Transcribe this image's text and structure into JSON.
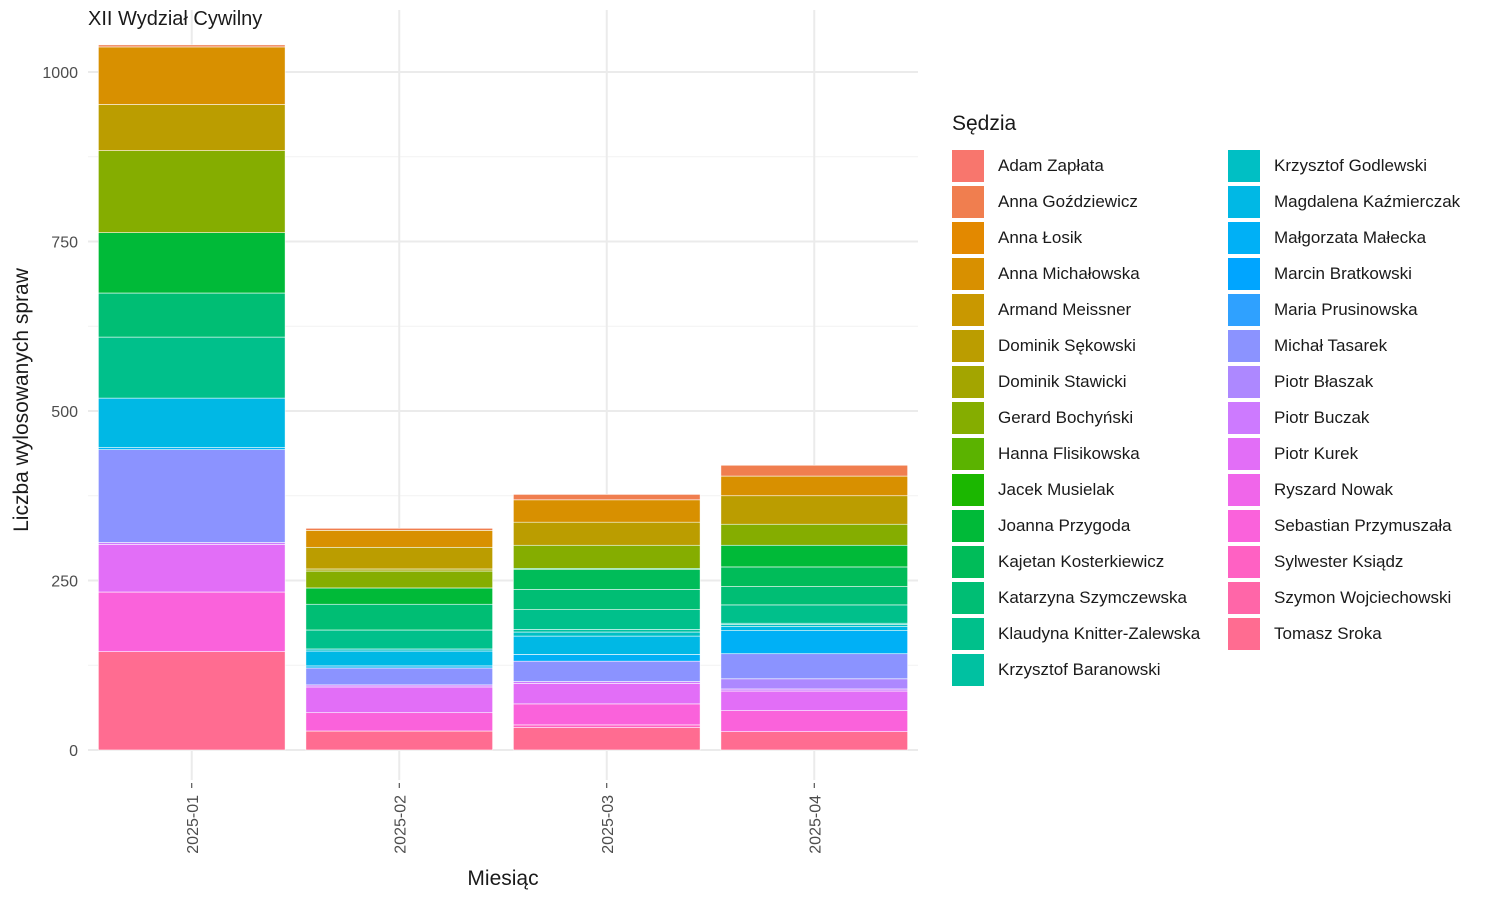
{
  "chart_data": {
    "type": "bar",
    "stacked": true,
    "title": "XII Wydział Cywilny",
    "xlabel": "Miesiąc",
    "ylabel": "Liczba wylosowanych spraw",
    "categories": [
      "2025-01",
      "2025-02",
      "2025-03",
      "2025-04"
    ],
    "ylim": [
      0,
      1040
    ],
    "yticks": [
      0,
      250,
      500,
      750,
      1000
    ],
    "grid": true,
    "legend_title": "Sędzia",
    "legend_position": "right",
    "series": [
      {
        "name": "Adam Zapłata",
        "color": "#F8766D",
        "values": [
          0,
          0,
          0,
          0
        ]
      },
      {
        "name": "Anna Goździewicz",
        "color": "#F07E4F",
        "values": [
          3,
          3,
          8,
          16
        ]
      },
      {
        "name": "Anna Łosik",
        "color": "#E38900",
        "values": [
          0,
          0,
          0,
          0
        ]
      },
      {
        "name": "Anna Michałowska",
        "color": "#D89000",
        "values": [
          85,
          25,
          33,
          29
        ]
      },
      {
        "name": "Armand Meissner",
        "color": "#C99800",
        "values": [
          0,
          0,
          0,
          0
        ]
      },
      {
        "name": "Dominik Sękowski",
        "color": "#BB9D00",
        "values": [
          68,
          32,
          34,
          42
        ]
      },
      {
        "name": "Dominik Stawicki",
        "color": "#A3A500",
        "values": [
          0,
          3,
          0,
          0
        ]
      },
      {
        "name": "Gerard Bochyński",
        "color": "#85AD00",
        "values": [
          121,
          25,
          34,
          31
        ]
      },
      {
        "name": "Hanna Flisikowska",
        "color": "#5BB300",
        "values": [
          0,
          0,
          0,
          0
        ]
      },
      {
        "name": "Jacek Musielak",
        "color": "#1BB700",
        "values": [
          0,
          0,
          0,
          0
        ]
      },
      {
        "name": "Joanna Przygoda",
        "color": "#00BA38",
        "values": [
          89,
          24,
          2,
          32
        ]
      },
      {
        "name": "Kajetan Kosterkiewicz",
        "color": "#00BC59",
        "values": [
          0,
          0,
          29,
          29
        ]
      },
      {
        "name": "Katarzyna Szymczewska",
        "color": "#00BE74",
        "values": [
          65,
          38,
          30,
          27
        ]
      },
      {
        "name": "Klaudyna Knitter-Zalewska",
        "color": "#00C08B",
        "values": [
          90,
          28,
          29,
          27
        ]
      },
      {
        "name": "Krzysztof Baranowski",
        "color": "#00C1A1",
        "values": [
          0,
          0,
          4,
          2
        ]
      },
      {
        "name": "Krzysztof Godlewski",
        "color": "#00BFC4",
        "values": [
          0,
          3,
          6,
          3
        ]
      },
      {
        "name": "Magdalena Kaźmierczak",
        "color": "#00B8E5",
        "values": [
          73,
          22,
          27,
          6
        ]
      },
      {
        "name": "Małgorzata Małecka",
        "color": "#00B0F6",
        "values": [
          3,
          3,
          10,
          34
        ]
      },
      {
        "name": "Marcin Bratkowski",
        "color": "#00A5FF",
        "values": [
          0,
          0,
          0,
          0
        ]
      },
      {
        "name": "Maria Prusinowska",
        "color": "#2FA1FF",
        "values": [
          0,
          0,
          0,
          0
        ]
      },
      {
        "name": "Michał Tasarek",
        "color": "#8B93FF",
        "values": [
          137,
          25,
          30,
          37
        ]
      },
      {
        "name": "Piotr Błaszak",
        "color": "#AD88FF",
        "values": [
          0,
          0,
          0,
          15
        ]
      },
      {
        "name": "Piotr Buczak",
        "color": "#CD7AFF",
        "values": [
          3,
          3,
          3,
          3
        ]
      },
      {
        "name": "Piotr Kurek",
        "color": "#E26EF7",
        "values": [
          70,
          38,
          30,
          29
        ]
      },
      {
        "name": "Ryszard Nowak",
        "color": "#F066EA",
        "values": [
          0,
          0,
          0,
          0
        ]
      },
      {
        "name": "Sebastian Przymuszała",
        "color": "#FA62DB",
        "values": [
          88,
          27,
          31,
          31
        ]
      },
      {
        "name": "Sylwester Ksiądz",
        "color": "#FF61C3",
        "values": [
          0,
          0,
          4,
          0
        ]
      },
      {
        "name": "Szymon Wojciechowski",
        "color": "#FF66A8",
        "values": [
          0,
          0,
          0,
          0
        ]
      },
      {
        "name": "Tomasz Sroka",
        "color": "#FF6C91",
        "values": [
          145,
          28,
          33,
          27
        ]
      }
    ]
  }
}
